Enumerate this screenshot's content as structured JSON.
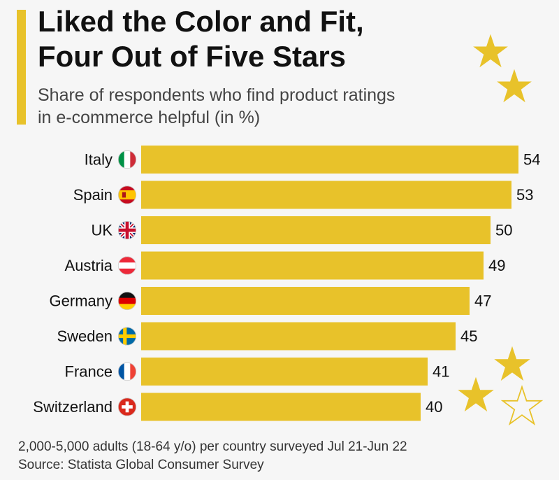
{
  "title_line1": "Liked the Color and Fit,",
  "title_line2": "Four Out of Five Stars",
  "subtitle_line1": "Share of respondents who find product ratings",
  "subtitle_line2": "in e-commerce helpful (in %)",
  "footer": {
    "note": "2,000-5,000 adults (18-64 y/o) per country surveyed Jul 21-Jun 22",
    "source": "Source: Statista Global Consumer Survey"
  },
  "colors": {
    "bar": "#e8c22a",
    "accent": "#e8c22a",
    "background": "#f6f6f6",
    "text": "#111111"
  },
  "chart_data": {
    "type": "bar",
    "orientation": "horizontal",
    "categories": [
      "Italy",
      "Spain",
      "UK",
      "Austria",
      "Germany",
      "Sweden",
      "France",
      "Switzerland"
    ],
    "values": [
      54,
      53,
      50,
      49,
      47,
      45,
      41,
      40
    ],
    "flags": [
      "italy",
      "spain",
      "uk",
      "austria",
      "germany",
      "sweden",
      "france",
      "switzerland"
    ],
    "xlim": [
      0,
      54
    ],
    "grid": false,
    "legend": "none",
    "data_labels": true
  }
}
